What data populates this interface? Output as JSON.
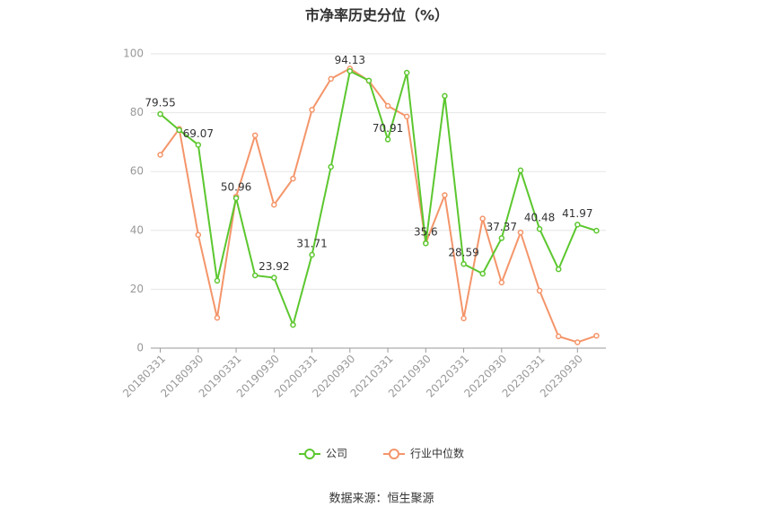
{
  "chart_data": {
    "type": "line",
    "title": "市净率历史分位（%）",
    "categories": [
      "20180331",
      null,
      "20180930",
      null,
      "20190331",
      null,
      "20190930",
      null,
      "20200331",
      null,
      "20200930",
      null,
      "20210331",
      null,
      "20210930",
      null,
      "20220331",
      null,
      "20220930",
      null,
      "20230331",
      null,
      "20230930",
      null
    ],
    "series": [
      {
        "name": "公司",
        "color": "#5cc72f",
        "values": [
          79.55,
          74.1,
          69.07,
          22.9,
          50.96,
          24.7,
          23.92,
          7.9,
          31.71,
          61.6,
          94.13,
          90.9,
          70.91,
          93.6,
          35.6,
          85.7,
          28.59,
          25.3,
          37.37,
          60.4,
          40.48,
          26.8,
          41.97,
          39.9
        ]
      },
      {
        "name": "行业中位数",
        "color": "#f4956a",
        "values": [
          65.7,
          74.5,
          38.5,
          10.3,
          51.5,
          72.3,
          48.7,
          57.6,
          81,
          91.5,
          95,
          90.8,
          82.3,
          78.7,
          35.7,
          52,
          10.1,
          44,
          22.3,
          39.3,
          19.5,
          4,
          2,
          4.2
        ]
      }
    ],
    "ylim": [
      0,
      100
    ],
    "yticks": [
      0,
      20,
      40,
      60,
      80,
      100
    ],
    "grid": true,
    "legend": "bottom",
    "source": "数据来源：恒生聚源"
  }
}
